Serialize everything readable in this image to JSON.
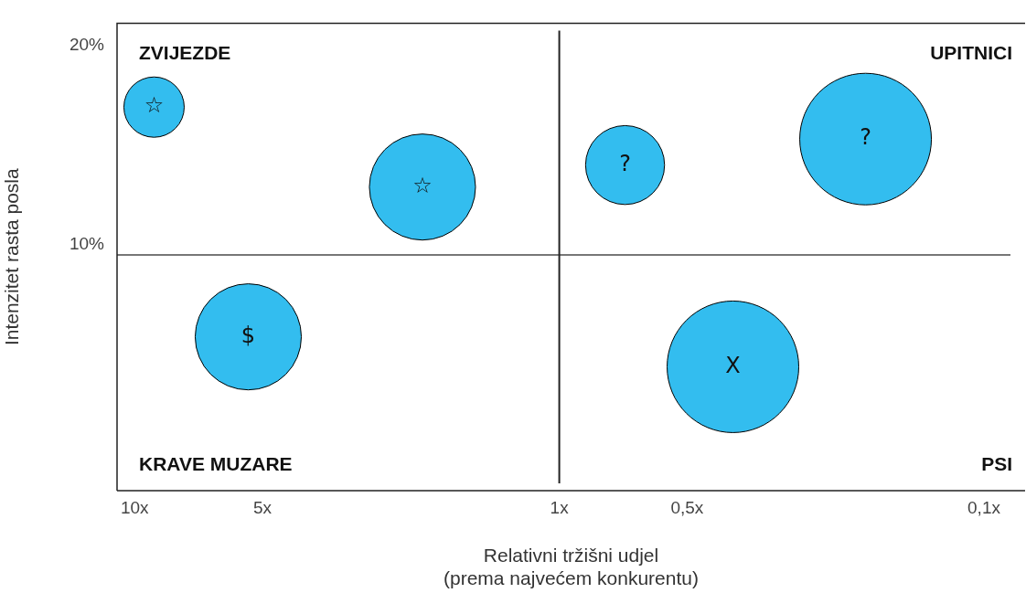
{
  "chart_data": {
    "type": "bubble",
    "xlabel": "Relativni tržišni udjel\n(prema najvećem konkurentu)",
    "ylabel": "Intenzitet rasta posla",
    "series": [
      {
        "color": "#33bdef",
        "x": [
          9.0,
          2.1,
          0.7,
          0.19,
          5.4,
          0.39
        ],
        "values": [
          16.9,
          12.9,
          14.0,
          15.3,
          5.4,
          3.9
        ],
        "sizes": [
          0.21,
          0.65,
          0.36,
          1,
          0.65,
          1
        ]
      }
    ],
    "log": "x",
    "xlim": [
      11,
      0.08
    ],
    "xticks": [
      {
        "value": 10,
        "label": "10x"
      },
      {
        "value": 5,
        "label": "5x"
      },
      {
        "value": 1,
        "label": "1x"
      },
      {
        "value": 0.5,
        "label": "0,5x"
      },
      {
        "value": 0.1,
        "label": "0,1x"
      }
    ],
    "ylim": [
      -2.3,
      21.1
    ],
    "yticks": [
      {
        "value": 10,
        "label": "10%"
      },
      {
        "value": 20,
        "label": "20%"
      }
    ],
    "ref_lines": [
      {
        "axis": "y",
        "value": 9.5,
        "color": "#777777"
      },
      {
        "axis": "x",
        "value": 1,
        "color": "#222222"
      }
    ],
    "annotations": [
      "ZVIJEZDE",
      "UPITNICI",
      "KRAVE MUZARE",
      "PSI",
      {
        "text": "☆",
        "x": 9.0,
        "y": 16.9
      },
      {
        "text": "☆",
        "x": 2.1,
        "y": 12.9
      },
      {
        "text": "?",
        "x": 0.7,
        "y": 14.0
      },
      {
        "text": "?",
        "x": 0.19,
        "y": 15.3
      },
      {
        "text": "$",
        "x": 5.4,
        "y": 5.4
      },
      {
        "text": "X",
        "x": 0.39,
        "y": 3.9
      }
    ],
    "grid": false,
    "legend": false
  }
}
